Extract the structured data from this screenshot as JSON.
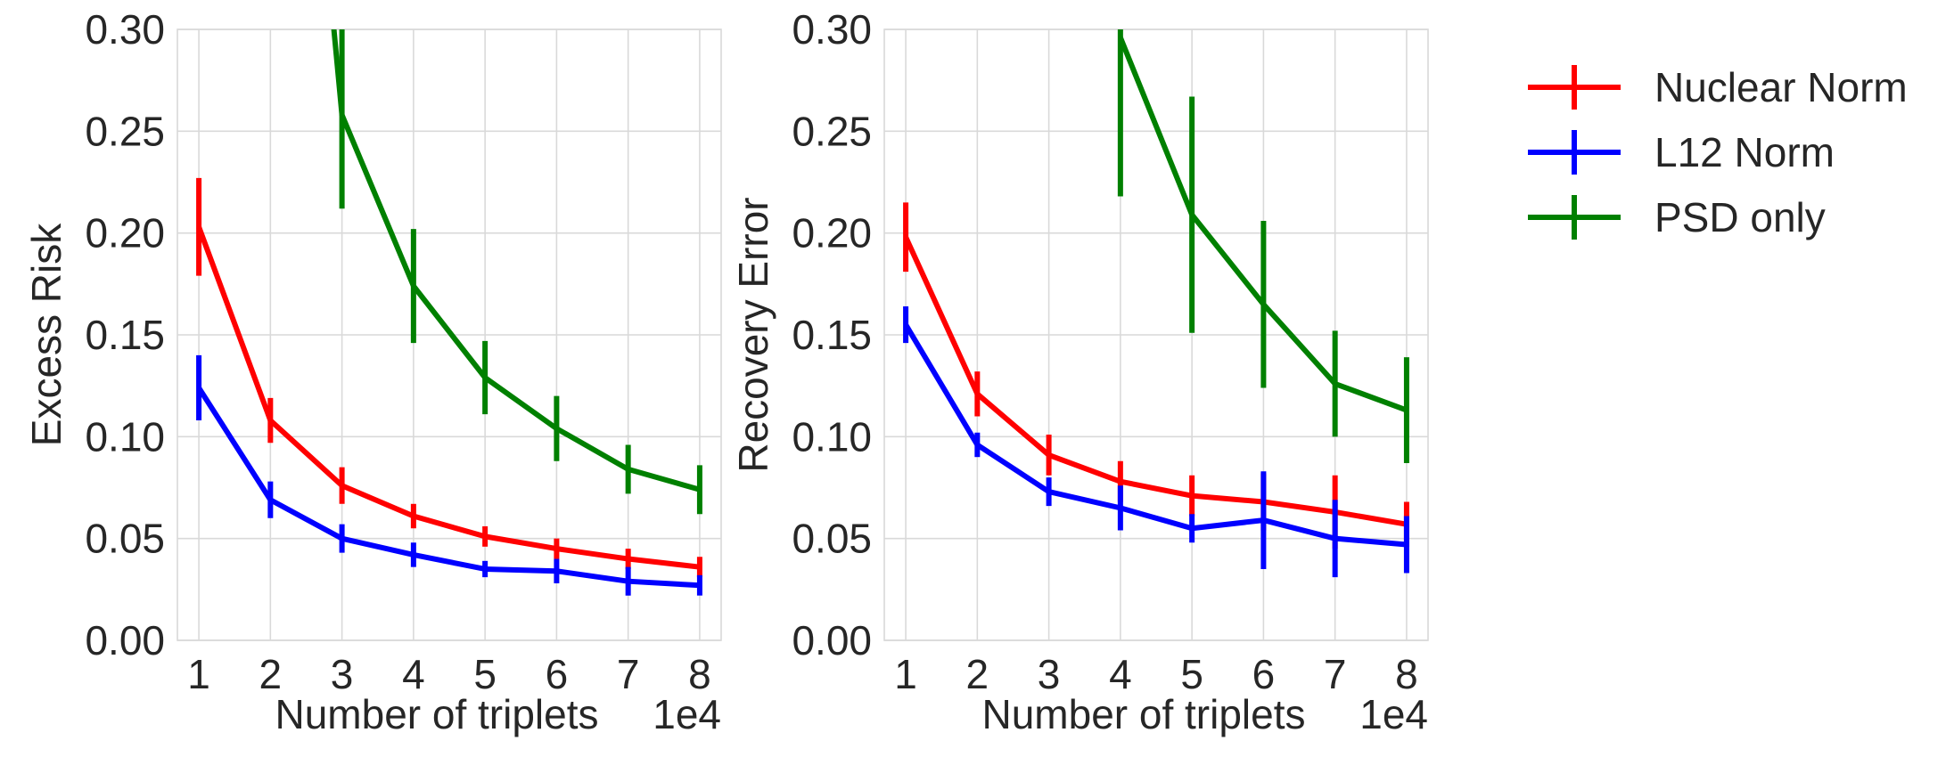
{
  "chart_data": [
    {
      "type": "line",
      "title": "",
      "xlabel": "Number of triplets",
      "x_offset_text": "1e4",
      "ylabel": "Excess Risk",
      "x": [
        1,
        2,
        3,
        4,
        5,
        6,
        7,
        8
      ],
      "xlim": [
        0.7,
        8.3
      ],
      "ylim": [
        0,
        0.3
      ],
      "xticks": [
        "1",
        "2",
        "3",
        "4",
        "5",
        "6",
        "7",
        "8"
      ],
      "yticks": [
        "0.00",
        "0.05",
        "0.10",
        "0.15",
        "0.20",
        "0.25",
        "0.30"
      ],
      "grid": true,
      "series": [
        {
          "name": "Nuclear Norm",
          "color": "#ff0000",
          "values": [
            0.203,
            0.108,
            0.076,
            0.061,
            0.051,
            0.045,
            0.04,
            0.036
          ],
          "errors": [
            0.024,
            0.011,
            0.009,
            0.006,
            0.005,
            0.005,
            0.005,
            0.005
          ]
        },
        {
          "name": "L12 Norm",
          "color": "#0000ff",
          "values": [
            0.124,
            0.069,
            0.05,
            0.042,
            0.035,
            0.034,
            0.029,
            0.027
          ],
          "errors": [
            0.016,
            0.009,
            0.007,
            0.006,
            0.004,
            0.006,
            0.007,
            0.005
          ]
        },
        {
          "name": "PSD only",
          "color": "#008000",
          "values": [
            null,
            null,
            0.258,
            0.174,
            0.129,
            0.104,
            0.084,
            0.074
          ],
          "errors": [
            null,
            null,
            0.046,
            0.028,
            0.018,
            0.016,
            0.012,
            0.012
          ],
          "note": "line enters from above the axis top (0.30) between x=2.8 and x=3"
        }
      ]
    },
    {
      "type": "line",
      "title": "",
      "xlabel": "Number of triplets",
      "x_offset_text": "1e4",
      "ylabel": "Recovery Error",
      "x": [
        1,
        2,
        3,
        4,
        5,
        6,
        7,
        8
      ],
      "xlim": [
        0.7,
        8.3
      ],
      "ylim": [
        0,
        0.3
      ],
      "xticks": [
        "1",
        "2",
        "3",
        "4",
        "5",
        "6",
        "7",
        "8"
      ],
      "yticks": [
        "0.00",
        "0.05",
        "0.10",
        "0.15",
        "0.20",
        "0.25",
        "0.30"
      ],
      "grid": true,
      "series": [
        {
          "name": "Nuclear Norm",
          "color": "#ff0000",
          "values": [
            0.198,
            0.121,
            0.091,
            0.078,
            0.071,
            0.068,
            0.063,
            0.057
          ],
          "errors": [
            0.017,
            0.011,
            0.01,
            0.01,
            0.01,
            0.014,
            0.018,
            0.011
          ]
        },
        {
          "name": "L12 Norm",
          "color": "#0000ff",
          "values": [
            0.155,
            0.096,
            0.073,
            0.065,
            0.055,
            0.059,
            0.05,
            0.047
          ],
          "errors": [
            0.009,
            0.006,
            0.007,
            0.011,
            0.007,
            0.024,
            0.019,
            0.014
          ]
        },
        {
          "name": "PSD only",
          "color": "#008000",
          "values": [
            null,
            null,
            null,
            0.296,
            0.209,
            0.165,
            0.126,
            0.113
          ],
          "errors": [
            null,
            null,
            null,
            0.078,
            0.058,
            0.041,
            0.026,
            0.026
          ],
          "note": "line starts at x=4 near the axis top"
        }
      ]
    }
  ],
  "legend": {
    "placement": "right, outside plots",
    "entries": [
      {
        "label": "Nuclear Norm",
        "color": "#ff0000"
      },
      {
        "label": "L12 Norm",
        "color": "#0000ff"
      },
      {
        "label": "PSD only",
        "color": "#008000"
      }
    ]
  }
}
